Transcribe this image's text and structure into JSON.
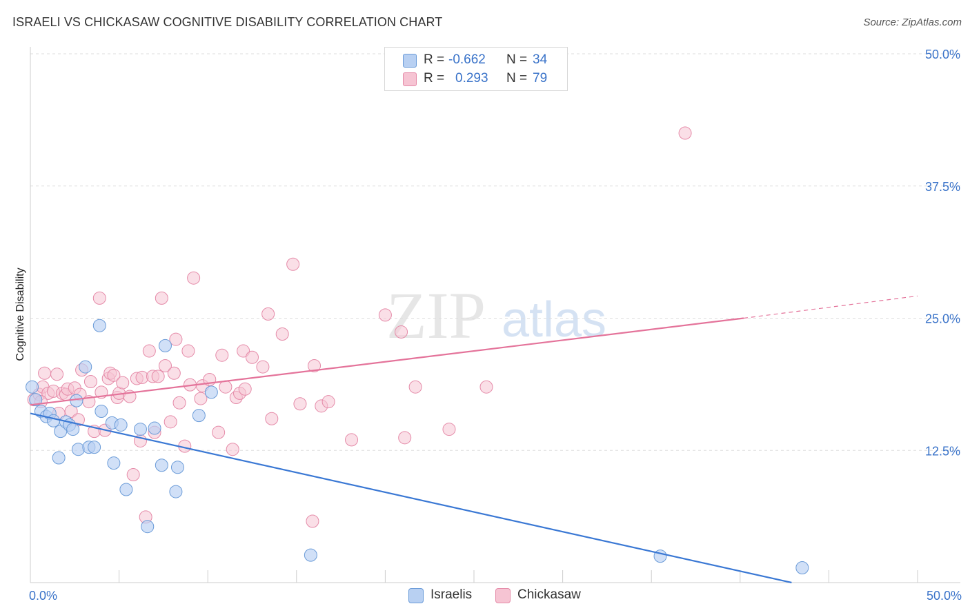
{
  "header": {
    "title": "ISRAELI VS CHICKASAW COGNITIVE DISABILITY CORRELATION CHART",
    "source": "Source: ZipAtlas.com"
  },
  "watermark": {
    "zip": "ZIP",
    "atlas": "atlas"
  },
  "legend": {
    "rows": [
      {
        "r_label": "R =",
        "r_value": "-0.662",
        "n_label": "N =",
        "n_value": "34"
      },
      {
        "r_label": "R =",
        "r_value": "0.293",
        "n_label": "N =",
        "n_value": "79"
      }
    ],
    "bottom": [
      {
        "label": "Israelis"
      },
      {
        "label": "Chickasaw"
      }
    ]
  },
  "colors": {
    "israelis_fill": "#b8d0f2",
    "israelis_stroke": "#6a9bd8",
    "israelis_line": "#3a78d4",
    "chickasaw_fill": "#f6c4d3",
    "chickasaw_stroke": "#e58aa8",
    "chickasaw_line": "#e4739a",
    "tick_label": "#3a73c9",
    "grid": "#dddddd"
  },
  "chart_data": {
    "type": "scatter",
    "title": "ISRAELI VS CHICKASAW COGNITIVE DISABILITY CORRELATION CHART",
    "xlabel": "",
    "ylabel": "Cognitive Disability",
    "xlim": [
      0,
      50
    ],
    "ylim": [
      0,
      50
    ],
    "x_ticks": [
      0,
      50
    ],
    "x_tick_labels": [
      "0.0%",
      "50.0%"
    ],
    "y_ticks": [
      12.5,
      25.0,
      37.5,
      50.0
    ],
    "y_tick_labels": [
      "12.5%",
      "25.0%",
      "37.5%",
      "50.0%"
    ],
    "grid": true,
    "legend_position": "top-center",
    "series": [
      {
        "name": "Israelis",
        "r": -0.662,
        "n": 34,
        "points": [
          [
            0.1,
            18.5
          ],
          [
            0.3,
            17.3
          ],
          [
            0.6,
            16.2
          ],
          [
            0.9,
            15.7
          ],
          [
            1.1,
            16.0
          ],
          [
            1.3,
            15.3
          ],
          [
            1.6,
            11.8
          ],
          [
            1.7,
            14.3
          ],
          [
            2.0,
            15.2
          ],
          [
            2.2,
            14.9
          ],
          [
            2.4,
            14.5
          ],
          [
            2.6,
            17.2
          ],
          [
            2.7,
            12.6
          ],
          [
            3.1,
            20.4
          ],
          [
            3.3,
            12.8
          ],
          [
            3.6,
            12.8
          ],
          [
            3.9,
            24.3
          ],
          [
            4.0,
            16.2
          ],
          [
            4.6,
            15.1
          ],
          [
            4.7,
            11.3
          ],
          [
            5.1,
            14.9
          ],
          [
            5.4,
            8.8
          ],
          [
            6.2,
            14.5
          ],
          [
            6.6,
            5.3
          ],
          [
            7.0,
            14.6
          ],
          [
            7.4,
            11.1
          ],
          [
            7.6,
            22.4
          ],
          [
            8.2,
            8.6
          ],
          [
            8.3,
            10.9
          ],
          [
            9.5,
            15.8
          ],
          [
            10.2,
            18.0
          ],
          [
            15.8,
            2.6
          ],
          [
            35.5,
            2.5
          ],
          [
            43.5,
            1.4
          ]
        ],
        "trend": {
          "x": [
            0,
            42.9
          ],
          "y": [
            16.0,
            0
          ],
          "dashed_to_x": null
        }
      },
      {
        "name": "Chickasaw",
        "r": 0.293,
        "n": 79,
        "points": [
          [
            0.2,
            17.3
          ],
          [
            0.5,
            17.8
          ],
          [
            0.7,
            18.5
          ],
          [
            0.8,
            19.8
          ],
          [
            1.0,
            17.9
          ],
          [
            1.3,
            18.1
          ],
          [
            1.5,
            19.7
          ],
          [
            1.6,
            16.0
          ],
          [
            1.8,
            17.9
          ],
          [
            2.0,
            17.8
          ],
          [
            2.1,
            18.3
          ],
          [
            2.3,
            16.2
          ],
          [
            2.5,
            18.4
          ],
          [
            2.7,
            15.4
          ],
          [
            2.8,
            17.8
          ],
          [
            2.9,
            20.1
          ],
          [
            3.3,
            17.1
          ],
          [
            3.4,
            19.0
          ],
          [
            3.6,
            14.3
          ],
          [
            3.9,
            26.9
          ],
          [
            4.0,
            18.0
          ],
          [
            4.2,
            14.4
          ],
          [
            4.4,
            19.3
          ],
          [
            4.5,
            19.8
          ],
          [
            4.7,
            19.6
          ],
          [
            4.9,
            17.5
          ],
          [
            5.0,
            17.9
          ],
          [
            5.2,
            18.9
          ],
          [
            5.6,
            17.6
          ],
          [
            5.8,
            10.2
          ],
          [
            6.0,
            19.3
          ],
          [
            6.2,
            13.4
          ],
          [
            6.3,
            19.4
          ],
          [
            6.5,
            6.2
          ],
          [
            6.7,
            21.9
          ],
          [
            6.9,
            19.5
          ],
          [
            7.0,
            14.2
          ],
          [
            7.2,
            19.5
          ],
          [
            7.4,
            26.9
          ],
          [
            7.6,
            20.5
          ],
          [
            7.9,
            15.2
          ],
          [
            8.1,
            19.8
          ],
          [
            8.2,
            23.0
          ],
          [
            8.4,
            17.0
          ],
          [
            8.7,
            12.9
          ],
          [
            8.9,
            21.9
          ],
          [
            9.0,
            18.7
          ],
          [
            9.2,
            28.8
          ],
          [
            9.6,
            17.4
          ],
          [
            9.7,
            18.6
          ],
          [
            10.1,
            19.2
          ],
          [
            10.6,
            14.2
          ],
          [
            10.8,
            21.5
          ],
          [
            11.0,
            18.5
          ],
          [
            11.4,
            12.6
          ],
          [
            11.6,
            17.5
          ],
          [
            11.8,
            17.9
          ],
          [
            12.0,
            21.9
          ],
          [
            12.1,
            18.3
          ],
          [
            12.5,
            21.3
          ],
          [
            13.1,
            20.4
          ],
          [
            13.4,
            25.4
          ],
          [
            13.6,
            15.5
          ],
          [
            14.2,
            23.5
          ],
          [
            14.8,
            30.1
          ],
          [
            15.2,
            16.9
          ],
          [
            15.9,
            5.8
          ],
          [
            16.0,
            20.5
          ],
          [
            16.4,
            16.7
          ],
          [
            16.8,
            17.1
          ],
          [
            18.1,
            13.5
          ],
          [
            20.0,
            25.3
          ],
          [
            20.9,
            23.7
          ],
          [
            21.1,
            13.7
          ],
          [
            21.7,
            18.5
          ],
          [
            23.6,
            14.5
          ],
          [
            25.7,
            18.5
          ],
          [
            36.9,
            42.5
          ],
          [
            0.6,
            17.1
          ]
        ],
        "trend": {
          "x": [
            0,
            40.2
          ],
          "y": [
            16.8,
            25.0
          ],
          "dashed_to_x": 50.0,
          "dashed_to_y": 27.1
        }
      }
    ]
  }
}
